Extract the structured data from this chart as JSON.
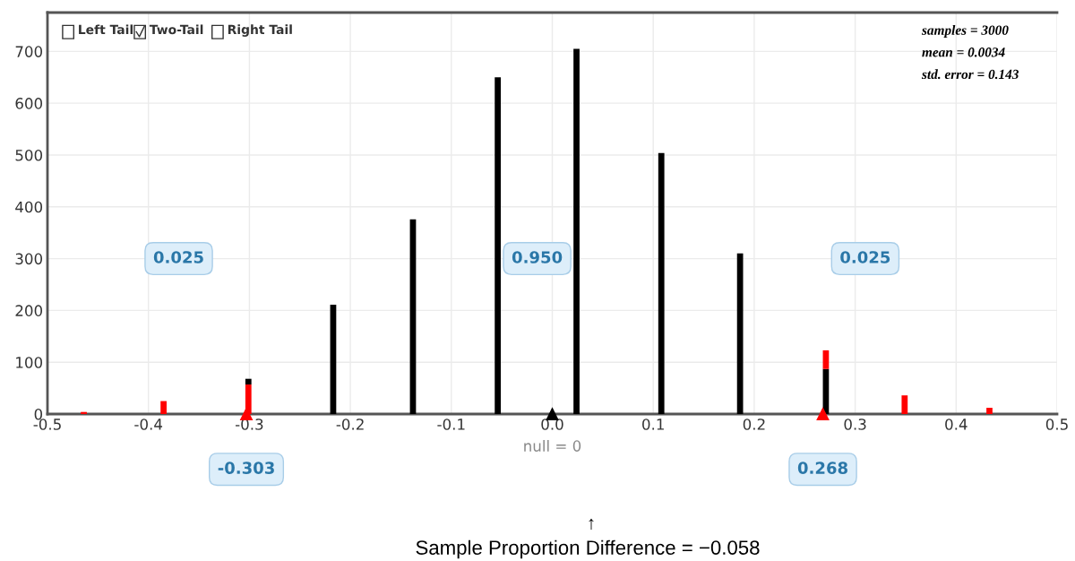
{
  "chart_data": {
    "type": "bar",
    "stacked": true,
    "x": [
      -0.464,
      -0.385,
      -0.301,
      -0.217,
      -0.138,
      -0.054,
      0.024,
      0.108,
      0.186,
      0.271,
      0.349,
      0.433
    ],
    "series": [
      {
        "color": "#ff0000",
        "values": [
          4,
          25,
          57,
          null,
          null,
          null,
          null,
          null,
          null,
          null,
          36,
          12
        ]
      },
      {
        "color": "#000000",
        "values": [
          null,
          null,
          11,
          211,
          376,
          650,
          705,
          504,
          310,
          87,
          null,
          null
        ]
      },
      {
        "color": "#ff0000",
        "values": [
          null,
          null,
          null,
          null,
          null,
          null,
          null,
          null,
          null,
          36,
          null,
          null
        ]
      }
    ],
    "xlim": [
      -0.5,
      0.5
    ],
    "xticks": [
      -0.5,
      -0.4,
      -0.3,
      -0.2,
      -0.1,
      {
        "value": 0,
        "label": "0.0"
      },
      0.1,
      0.2,
      0.3,
      0.4,
      0.5
    ],
    "ylim": [
      0,
      775
    ],
    "yticks": [
      0,
      100,
      200,
      300,
      400,
      500,
      600,
      700
    ],
    "grid": true,
    "annotations": [
      "Left Tail",
      "Two-Tail",
      "Right Tail",
      "samples = 3000",
      "mean = 0.0034",
      "std. error = 0.143",
      "0.025",
      "0.950",
      "0.025",
      {
        "text": "-0.303",
        "x": -0.303,
        "y": 0
      },
      {
        "text": "0.268",
        "x": 0.268,
        "y": 0
      },
      {
        "text": "null = 0",
        "x": 0,
        "y": 0
      },
      "↑",
      "Sample Proportion Difference = −0.058"
    ]
  }
}
